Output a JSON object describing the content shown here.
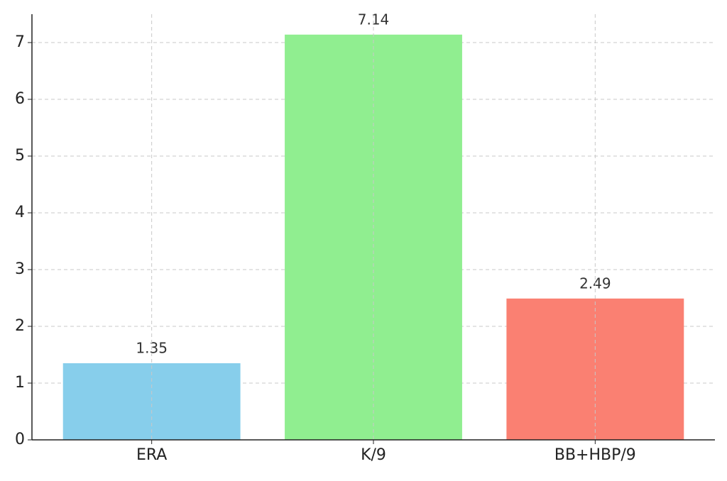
{
  "chart_data": {
    "type": "bar",
    "categories": [
      "ERA",
      "K/9",
      "BB+HBP/9"
    ],
    "values": [
      1.35,
      7.14,
      2.49
    ],
    "colors": [
      "#87ceeb",
      "#90ee90",
      "#fa8072"
    ],
    "ylim": [
      0,
      7.5
    ],
    "yticks": [
      0,
      1,
      2,
      3,
      4,
      5,
      6,
      7
    ],
    "grid": true
  }
}
